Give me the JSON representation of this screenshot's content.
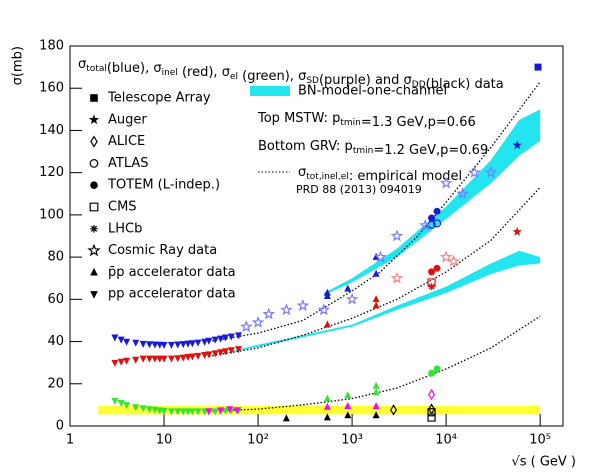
{
  "chart_data": {
    "type": "scatter",
    "title_runs": [
      {
        "text": "σ",
        "sub": "total"
      },
      {
        "text": "(blue), σ",
        "sub": "inel"
      },
      {
        "text": " (red), σ",
        "sub": "el"
      },
      {
        "text": " (green), σ",
        "sub": "SD"
      },
      {
        "text": "(purple) and σ",
        "sub": "DD"
      },
      {
        "text": "(black) data"
      }
    ],
    "x_label": "√s ( GeV )",
    "y_label": "σ(mb)",
    "log_x": true,
    "xlim": [
      1,
      175000
    ],
    "ylim": [
      0,
      180
    ],
    "xticks": [
      1,
      10,
      {
        "value": 100,
        "label": "10²"
      },
      {
        "value": 1000,
        "label": "10³"
      },
      {
        "value": 10000,
        "label": "10⁴"
      },
      {
        "value": 100000,
        "label": "10⁵"
      }
    ],
    "yticks": [
      0,
      20,
      40,
      60,
      80,
      100,
      120,
      140,
      160,
      180
    ],
    "legend": [
      {
        "marker": "square",
        "label": "Telescope Array"
      },
      {
        "marker": "star",
        "label": "Auger"
      },
      {
        "marker": "diamond-open",
        "label": "ALICE"
      },
      {
        "marker": "circle-open",
        "label": "ATLAS"
      },
      {
        "marker": "circle",
        "label": "TOTEM (L-indep.)"
      },
      {
        "marker": "square-open",
        "label": "CMS"
      },
      {
        "marker": "asterisk",
        "label": "LHCb"
      },
      {
        "marker": "star-open",
        "label": "Cosmic Ray data"
      },
      {
        "marker": "triangle-up",
        "label": "p̄p accelerator data"
      },
      {
        "marker": "triangle-down",
        "label": "pp accelerator data"
      }
    ],
    "band_label": "BN-model-one-channel",
    "band_color": "#22e5f0",
    "notes": [
      [
        {
          "text": "Top MSTW: p",
          "sub": "tmin"
        },
        {
          "text": "=1.3 GeV,p=0.66"
        }
      ],
      [
        {
          "text": "Bottom GRV: p",
          "sub": "tmin"
        },
        {
          "text": "=1.2 GeV,p=0.69"
        }
      ],
      [
        {
          "text": "σ",
          "sub": "tot,inel,el"
        },
        {
          "text": ": empirical model"
        }
      ]
    ],
    "reference": "PRD 88 (2013) 094019",
    "series": [
      {
        "kind": "band",
        "color": "#ffff33",
        "x": [
          2,
          100000
        ],
        "lower": [
          5.5,
          5.5
        ],
        "upper": [
          9.5,
          9.5
        ]
      },
      {
        "kind": "band",
        "color": "#22e5f0",
        "x": [
          500,
          1000,
          3000,
          10000,
          30000,
          60000,
          100000
        ],
        "lower": [
          62,
          68,
          80,
          98,
          115,
          128,
          135
        ],
        "upper": [
          63,
          70,
          84,
          104,
          126,
          145,
          150
        ]
      },
      {
        "kind": "band",
        "color": "#22e5f0",
        "x": [
          30,
          100,
          300,
          1000,
          3000,
          10000,
          30000,
          60000,
          100000
        ],
        "lower": [
          33,
          37.5,
          42,
          47,
          55,
          63,
          72,
          76,
          77
        ],
        "upper": [
          33,
          38.5,
          43,
          48,
          57,
          66,
          77,
          83,
          80
        ]
      },
      {
        "kind": "line",
        "color": "#000000",
        "x": [
          30,
          100,
          300,
          1000,
          2000,
          5000,
          10000,
          30000,
          100000
        ],
        "values": [
          40,
          44,
          50,
          64,
          73,
          90,
          106,
          132,
          163
        ]
      },
      {
        "kind": "line",
        "color": "#000000",
        "x": [
          30,
          100,
          300,
          1000,
          3000,
          10000,
          30000,
          100000
        ],
        "values": [
          33,
          37,
          43,
          51,
          60,
          73,
          88,
          113
        ]
      },
      {
        "kind": "line",
        "color": "#000000",
        "x": [
          30,
          100,
          300,
          1000,
          3000,
          10000,
          30000,
          100000
        ],
        "values": [
          7,
          8,
          10,
          13,
          18,
          27,
          37,
          52
        ]
      },
      {
        "kind": "points",
        "marker": "triangle-down",
        "color": "#1a1ad6",
        "x": [
          3,
          3.5,
          4,
          5,
          6,
          7,
          8,
          9,
          10,
          12,
          14,
          16,
          18,
          20,
          23,
          27,
          30,
          35,
          40,
          45,
          52,
          62
        ],
        "values": [
          42,
          41,
          40,
          39.5,
          39,
          38.8,
          38.7,
          38.6,
          38.5,
          38.5,
          38.7,
          38.9,
          39.1,
          39.3,
          39.6,
          40,
          40.5,
          41,
          41.5,
          42,
          42.5,
          43
        ]
      },
      {
        "kind": "points",
        "marker": "triangle-up",
        "color": "#1a1ad6",
        "x": [
          546,
          546,
          900,
          1800,
          1800
        ],
        "values": [
          61.5,
          63,
          65,
          72,
          80
        ]
      },
      {
        "kind": "points",
        "marker": "circle",
        "color": "#1a1ad6",
        "x": [
          7000,
          8000
        ],
        "values": [
          98.5,
          101.7
        ]
      },
      {
        "kind": "points",
        "marker": "circle-open",
        "color": "#1a1ad6",
        "x": [
          7000,
          8000
        ],
        "values": [
          95.4,
          96
        ]
      },
      {
        "kind": "points",
        "marker": "square",
        "color": "#1a1ad6",
        "x": [
          95000
        ],
        "values": [
          170
        ]
      },
      {
        "kind": "points",
        "marker": "star",
        "color": "#1a1ad6",
        "x": [
          57000
        ],
        "values": [
          133
        ]
      },
      {
        "kind": "points",
        "marker": "star-open",
        "color": "#7a7aff",
        "x": [
          75,
          100,
          130,
          200,
          300,
          500,
          1000,
          2000,
          3000,
          6000,
          10000,
          15000,
          20000,
          30000
        ],
        "values": [
          47,
          49,
          53,
          55,
          57,
          55,
          60,
          80,
          90,
          95,
          115,
          110,
          120,
          120
        ]
      },
      {
        "kind": "points",
        "marker": "triangle-down",
        "color": "#e01010",
        "x": [
          3,
          3.5,
          4,
          5,
          6,
          7,
          8,
          9,
          10,
          12,
          14,
          16,
          18,
          20,
          23,
          27,
          30,
          35,
          40,
          45,
          52,
          62
        ],
        "values": [
          30,
          30.5,
          31,
          31.5,
          32,
          32,
          32,
          32,
          32,
          32,
          32.2,
          32.5,
          32.8,
          33,
          33.3,
          33.7,
          34,
          34.5,
          35,
          35.5,
          36,
          36.5
        ]
      },
      {
        "kind": "points",
        "marker": "triangle-up",
        "color": "#e01010",
        "x": [
          546,
          1800,
          1800
        ],
        "values": [
          48,
          57,
          60
        ]
      },
      {
        "kind": "points",
        "marker": "circle",
        "color": "#e01010",
        "x": [
          7000,
          8000
        ],
        "values": [
          73,
          74.7
        ]
      },
      {
        "kind": "points",
        "marker": "square-open",
        "color": "#e01010",
        "x": [
          7000
        ],
        "values": [
          68
        ]
      },
      {
        "kind": "points",
        "marker": "asterisk",
        "color": "#e01010",
        "x": [
          7000
        ],
        "values": [
          66
        ]
      },
      {
        "kind": "points",
        "marker": "star",
        "color": "#e01010",
        "x": [
          57000
        ],
        "values": [
          92
        ]
      },
      {
        "kind": "points",
        "marker": "star-open",
        "color": "#ff8080",
        "x": [
          3000,
          10000,
          12000
        ],
        "values": [
          70,
          80,
          78
        ]
      },
      {
        "kind": "points",
        "marker": "triangle-down",
        "color": "#33e633",
        "x": [
          3,
          3.5,
          4,
          5,
          6,
          7,
          8,
          9,
          10,
          12,
          14,
          16,
          18,
          20,
          23,
          27,
          30,
          35,
          40,
          45,
          52,
          62
        ],
        "values": [
          12,
          11,
          10,
          9,
          8.5,
          8,
          7.8,
          7.5,
          7.2,
          7,
          7,
          7,
          7,
          7,
          7,
          7,
          7,
          7,
          7.2,
          7.4,
          7.5,
          7.6
        ]
      },
      {
        "kind": "points",
        "marker": "triangle-up",
        "color": "#33e633",
        "x": [
          546,
          900,
          1800,
          1800
        ],
        "values": [
          13,
          14.5,
          16,
          19
        ]
      },
      {
        "kind": "points",
        "marker": "circle",
        "color": "#33e633",
        "x": [
          7000,
          8000
        ],
        "values": [
          25,
          27
        ]
      },
      {
        "kind": "points",
        "marker": "triangle-down",
        "color": "#ff00ff",
        "x": [
          30,
          40,
          50,
          60
        ],
        "values": [
          7,
          7.5,
          8,
          7.5
        ]
      },
      {
        "kind": "points",
        "marker": "triangle-up",
        "color": "#ff00ff",
        "x": [
          546,
          900,
          1800
        ],
        "values": [
          9,
          9.4,
          9.3
        ]
      },
      {
        "kind": "points",
        "marker": "diamond-open",
        "color": "#ff00ff",
        "x": [
          7000
        ],
        "values": [
          14.9
        ]
      },
      {
        "kind": "points",
        "marker": "triangle-up",
        "color": "#000000",
        "x": [
          200,
          546,
          900,
          1800
        ],
        "values": [
          3.5,
          4,
          5,
          5
        ]
      },
      {
        "kind": "points",
        "marker": "diamond-open",
        "color": "#000000",
        "x": [
          2760,
          7000
        ],
        "values": [
          7.6,
          8
        ]
      },
      {
        "kind": "points",
        "marker": "square-open",
        "color": "#000000",
        "x": [
          7000,
          7000
        ],
        "values": [
          4,
          6.5
        ]
      }
    ]
  }
}
